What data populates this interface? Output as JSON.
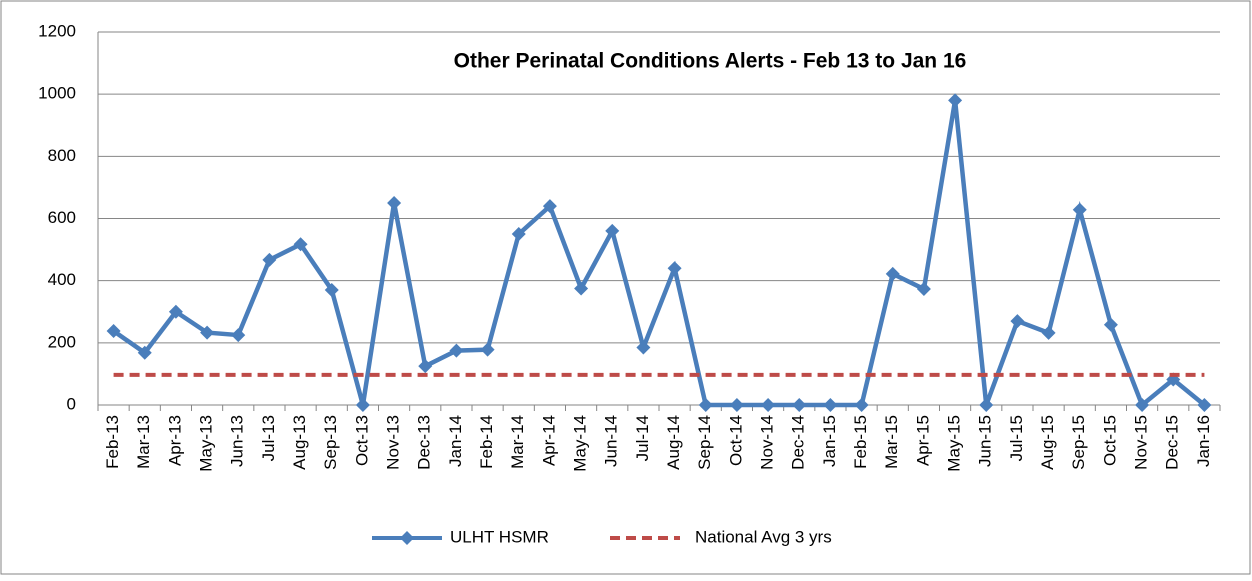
{
  "chart_data": {
    "type": "line",
    "title": "Other Perinatal Conditions Alerts - Feb 13 to Jan 16",
    "categories": [
      "Feb-13",
      "Mar-13",
      "Apr-13",
      "May-13",
      "Jun-13",
      "Jul-13",
      "Aug-13",
      "Sep-13",
      "Oct-13",
      "Nov-13",
      "Dec-13",
      "Jan-14",
      "Feb-14",
      "Mar-14",
      "Apr-14",
      "May-14",
      "Jun-14",
      "Jul-14",
      "Aug-14",
      "Sep-14",
      "Oct-14",
      "Nov-14",
      "Dec-14",
      "Jan-15",
      "Feb-15",
      "Mar-15",
      "Apr-15",
      "May-15",
      "Jun-15",
      "Jul-15",
      "Aug-15",
      "Sep-15",
      "Oct-15",
      "Nov-15",
      "Dec-15",
      "Jan-16"
    ],
    "series": [
      {
        "name": "ULHT HSMR",
        "color": "#4a7ebb",
        "values": [
          238,
          168,
          300,
          233,
          225,
          467,
          517,
          370,
          0,
          650,
          125,
          175,
          178,
          550,
          640,
          375,
          560,
          185,
          440,
          0,
          0,
          0,
          0,
          0,
          0,
          422,
          373,
          980,
          0,
          270,
          232,
          628,
          258,
          0,
          82,
          0
        ]
      },
      {
        "name": "National Avg 3 yrs",
        "color": "#be4b48",
        "values": [
          97,
          97,
          97,
          97,
          97,
          97,
          97,
          97,
          97,
          97,
          97,
          97,
          97,
          97,
          97,
          97,
          97,
          97,
          97,
          97,
          97,
          97,
          97,
          97,
          97,
          97,
          97,
          97,
          97,
          97,
          97,
          97,
          97,
          97,
          97,
          97
        ]
      }
    ],
    "ylim": [
      0,
      1200
    ],
    "yticks": [
      0,
      200,
      400,
      600,
      800,
      1000,
      1200
    ],
    "grid": true,
    "legend": "bottom"
  }
}
